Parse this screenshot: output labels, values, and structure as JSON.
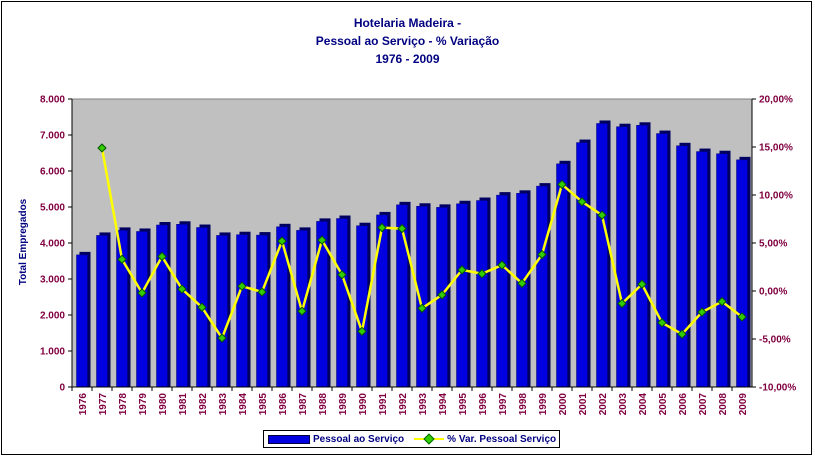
{
  "title": {
    "line1": "Hotelaria Madeira -",
    "line2": "Pessoal ao Serviço - % Variação",
    "line3": "1976 - 2009"
  },
  "colors": {
    "plot_background": "#c0c0c0",
    "bar": "#0000e0",
    "line": "#ffff00",
    "marker": "#33cc00",
    "axis_text": "#800040",
    "title_text": "#000080"
  },
  "chart_data": {
    "type": "bar",
    "title": "Hotelaria Madeira - Pessoal ao Serviço - % Variação 1976 - 2009",
    "ylabel": "Total Empregados",
    "xlabel": "",
    "ylim": [
      0,
      8000
    ],
    "y2lim": [
      -10,
      20
    ],
    "y_ticks": [
      "0",
      "1.000",
      "2.000",
      "3.000",
      "4.000",
      "5.000",
      "6.000",
      "7.000",
      "8.000"
    ],
    "y2_ticks": [
      "-10,00%",
      "-5,00%",
      "0,00%",
      "5,00%",
      "10,00%",
      "15,00%",
      "20,00%"
    ],
    "grid": false,
    "legend_position": "bottom",
    "categories": [
      "1976",
      "1977",
      "1978",
      "1979",
      "1980",
      "1981",
      "1982",
      "1983",
      "1984",
      "1985",
      "1986",
      "1987",
      "1988",
      "1989",
      "1990",
      "1991",
      "1992",
      "1993",
      "1994",
      "1995",
      "1996",
      "1997",
      "1998",
      "1999",
      "2000",
      "2001",
      "2002",
      "2003",
      "2004",
      "2005",
      "2006",
      "2007",
      "2008",
      "2009"
    ],
    "series": [
      {
        "name": "Pessoal ao Serviço",
        "type": "bar",
        "axis": "left",
        "values": [
          3670,
          4210,
          4350,
          4320,
          4500,
          4520,
          4430,
          4210,
          4230,
          4220,
          4450,
          4350,
          4600,
          4680,
          4480,
          4780,
          5060,
          5020,
          4990,
          5090,
          5180,
          5330,
          5380,
          5580,
          6200,
          6790,
          7320,
          7230,
          7270,
          7040,
          6700,
          6540,
          6480,
          6310
        ]
      },
      {
        "name": "% Var. Pessoal Serviço",
        "type": "line",
        "axis": "right",
        "values": [
          null,
          14.9,
          3.3,
          -0.2,
          3.6,
          0.2,
          -1.7,
          -4.9,
          0.5,
          -0.1,
          5.2,
          -2.1,
          5.3,
          1.7,
          -4.2,
          6.6,
          6.5,
          -1.8,
          -0.4,
          2.2,
          1.8,
          2.7,
          0.8,
          3.8,
          11.1,
          9.3,
          7.9,
          -1.3,
          0.7,
          -3.3,
          -4.5,
          -2.2,
          -1.1,
          -2.7
        ]
      }
    ]
  },
  "legend": {
    "bar_label": "Pessoal ao Serviço",
    "line_label": "% Var. Pessoal Serviço"
  }
}
